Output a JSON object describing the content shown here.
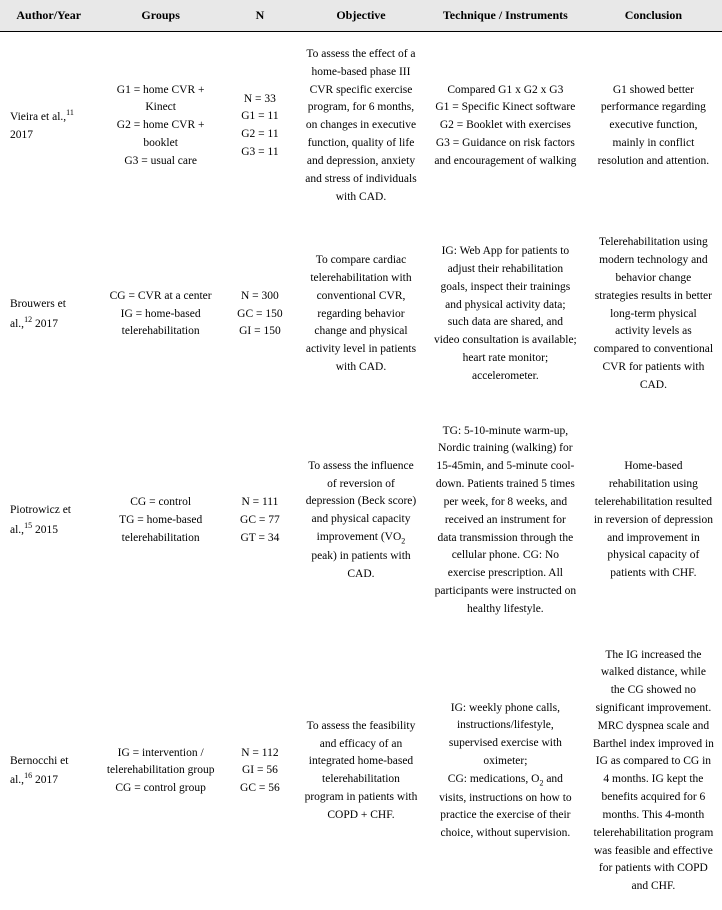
{
  "table": {
    "background_header": "#e8e8e8",
    "border_color": "#000000",
    "font_family": "Palatino Linotype",
    "header_fontsize": 12,
    "cell_fontsize": 11.5,
    "columns": [
      {
        "key": "author",
        "label": "Author/Year",
        "width_pct": 13.5
      },
      {
        "key": "groups",
        "label": "Groups",
        "width_pct": 17.5
      },
      {
        "key": "n",
        "label": "N",
        "width_pct": 10
      },
      {
        "key": "objective",
        "label": "Objective",
        "width_pct": 18
      },
      {
        "key": "technique",
        "label": "Technique / Instruments",
        "width_pct": 22
      },
      {
        "key": "conclusion",
        "label": "Conclusion",
        "width_pct": 19
      }
    ],
    "rows": [
      {
        "author_html": "Vieira et al.,<span class=\"sup\">11</span> 2017",
        "groups": "G1 = home CVR + Kinect\nG2 = home CVR + booklet\nG3 = usual care",
        "n": "N = 33\nG1 = 11\nG2 = 11\nG3 = 11",
        "objective": "To assess the effect of a home-based phase III CVR specific exercise program, for 6 months, on changes in executive function, quality of life and depression, anxiety and stress of individuals with CAD.",
        "technique": "Compared G1 x G2 x G3\nG1 = Specific Kinect software\nG2 = Booklet with exercises\nG3 = Guidance on risk factors and encouragement of walking",
        "conclusion": "G1 showed better performance regarding executive function, mainly in conflict resolution and attention."
      },
      {
        "author_html": "Brouwers et al.,<span class=\"sup\">12</span> 2017",
        "groups": "CG = CVR at a center\nIG = home-based telerehabilitation",
        "n": "N = 300\nGC = 150\nGI = 150",
        "objective": "To compare cardiac telerehabilitation with conventional CVR, regarding behavior change and physical activity level in patients with CAD.",
        "technique": "IG: Web App for patients to adjust their rehabilitation goals, inspect their trainings and physical activity data; such data are shared, and video consultation is available; heart rate monitor; accelerometer.",
        "conclusion": "Telerehabilitation using modern technology and behavior change strategies results in better long-term physical activity levels as compared to conventional CVR for patients with CAD."
      },
      {
        "author_html": "Piotrowicz et al.,<span class=\"sup\">15</span> 2015",
        "groups": "CG = control\nTG = home-based telerehabilitation",
        "n": "N = 111\nGC = 77\nGT = 34",
        "objective_html": "To assess the influence of reversion of depression (Beck score) and physical capacity improvement (VO<span class=\"sub\">2</span> peak) in patients with CAD.",
        "technique": "TG: 5-10-minute warm-up, Nordic training (walking) for 15-45min, and 5-minute cool-down. Patients trained 5 times per week, for 8 weeks, and received an instrument for data transmission through the cellular phone. CG: No exercise prescription. All participants were instructed on healthy lifestyle.",
        "conclusion": "Home-based rehabilitation using telerehabilitation resulted in reversion of depression and improvement in physical capacity of patients with CHF."
      },
      {
        "author_html": "Bernocchi et al.,<span class=\"sup\">16</span> 2017",
        "groups": "IG = intervention / telerehabilitation group\nCG = control group",
        "n": "N = 112\nGI = 56\nGC = 56",
        "objective": "To assess the feasibility and efficacy of an integrated home-based telerehabilitation program in patients with COPD + CHF.",
        "technique_html": "IG: weekly phone calls, instructions/lifestyle, supervised exercise with oximeter;<br>CG: medications, O<span class=\"sub\">2</span> and visits, instructions on how to practice the exercise of their choice, without supervision.",
        "conclusion": "The IG increased the walked distance, while the CG showed no significant improvement. MRC dyspnea scale and Barthel index improved in IG as compared to CG in 4 months. IG kept the benefits acquired for 6 months. This 4-month telerehabilitation program was feasible and effective for patients with COPD and CHF."
      }
    ]
  }
}
